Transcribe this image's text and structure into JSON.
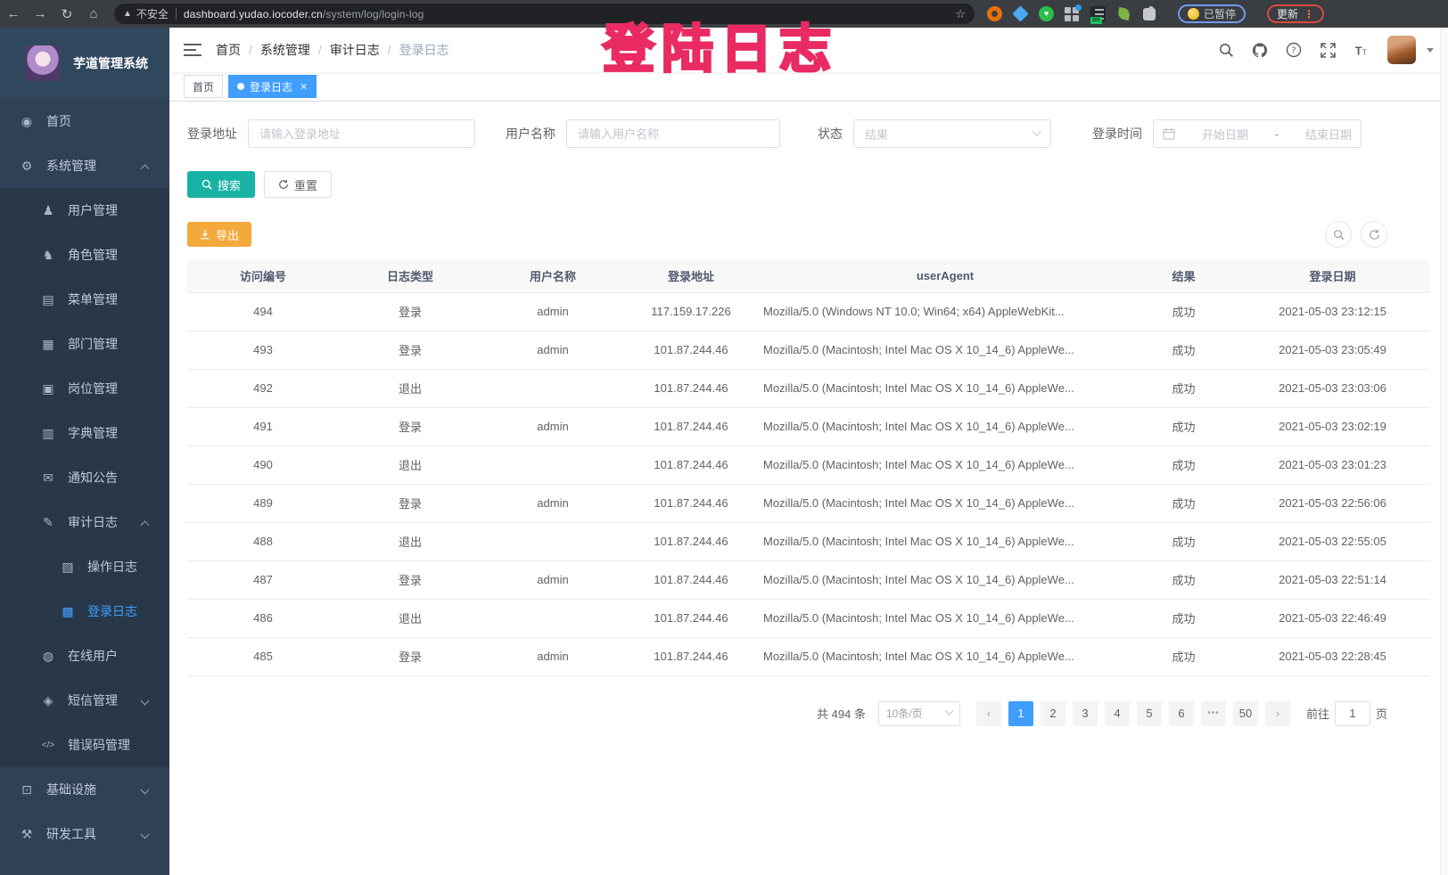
{
  "browser": {
    "security_label": "不安全",
    "url_host": "dashboard.yudao.iocoder.cn",
    "url_path": "/system/log/login-log",
    "paused_label": "已暂停",
    "update_label": "更新"
  },
  "annotation": {
    "text": "登陆日志",
    "color": "#ea2a62"
  },
  "colors": {
    "primary": "#409eff",
    "search_button": "#18b3a4",
    "export_button": "#f4a93d",
    "sidebar_bg": "#2f4156",
    "sidebar_submenu_bg": "#283849",
    "sidebar_text": "#bfcbd9"
  },
  "sidebar": {
    "title": "芋道管理系统",
    "items": [
      {
        "label": "首页",
        "icon": "dashboard-icon",
        "depth": 0
      },
      {
        "label": "系统管理",
        "icon": "gear-icon",
        "depth": 0,
        "chevron": "up"
      },
      {
        "label": "用户管理",
        "icon": "user-icon",
        "depth": 1
      },
      {
        "label": "角色管理",
        "icon": "role-icon",
        "depth": 1
      },
      {
        "label": "菜单管理",
        "icon": "menu-list-icon",
        "depth": 1
      },
      {
        "label": "部门管理",
        "icon": "org-tree-icon",
        "depth": 1
      },
      {
        "label": "岗位管理",
        "icon": "post-icon",
        "depth": 1
      },
      {
        "label": "字典管理",
        "icon": "dict-icon",
        "depth": 1
      },
      {
        "label": "通知公告",
        "icon": "notice-icon",
        "depth": 1
      },
      {
        "label": "审计日志",
        "icon": "audit-icon",
        "depth": 1,
        "chevron": "up"
      },
      {
        "label": "操作日志",
        "icon": "operate-log-icon",
        "depth": 2
      },
      {
        "label": "登录日志",
        "icon": "login-log-icon",
        "depth": 2,
        "active": true
      },
      {
        "label": "在线用户",
        "icon": "online-user-icon",
        "depth": 1
      },
      {
        "label": "短信管理",
        "icon": "sms-icon",
        "depth": 1,
        "chevron": "down"
      },
      {
        "label": "错误码管理",
        "icon": "error-code-icon",
        "depth": 1
      },
      {
        "label": "基础设施",
        "icon": "infra-icon",
        "depth": 0,
        "chevron": "down"
      },
      {
        "label": "研发工具",
        "icon": "dev-tools-icon",
        "depth": 0,
        "chevron": "down"
      }
    ]
  },
  "breadcrumb": {
    "items": [
      "首页",
      "系统管理",
      "审计日志",
      "登录日志"
    ]
  },
  "tabs": {
    "home_label": "首页",
    "active_label": "登录日志"
  },
  "filters": {
    "address_label": "登录地址",
    "address_placeholder": "请输入登录地址",
    "username_label": "用户名称",
    "username_placeholder": "请输入用户名称",
    "status_label": "状态",
    "status_placeholder": "结果",
    "time_label": "登录时间",
    "start_placeholder": "开始日期",
    "range_separator": "-",
    "end_placeholder": "结束日期",
    "search_label": "搜索",
    "reset_label": "重置"
  },
  "toolbar": {
    "export_label": "导出"
  },
  "table": {
    "columns": [
      "访问编号",
      "日志类型",
      "用户名称",
      "登录地址",
      "userAgent",
      "结果",
      "登录日期"
    ],
    "rows": [
      [
        "494",
        "登录",
        "admin",
        "117.159.17.226",
        "Mozilla/5.0 (Windows NT 10.0; Win64; x64) AppleWebKit...",
        "成功",
        "2021-05-03 23:12:15"
      ],
      [
        "493",
        "登录",
        "admin",
        "101.87.244.46",
        "Mozilla/5.0 (Macintosh; Intel Mac OS X 10_14_6) AppleWe...",
        "成功",
        "2021-05-03 23:05:49"
      ],
      [
        "492",
        "退出",
        "",
        "101.87.244.46",
        "Mozilla/5.0 (Macintosh; Intel Mac OS X 10_14_6) AppleWe...",
        "成功",
        "2021-05-03 23:03:06"
      ],
      [
        "491",
        "登录",
        "admin",
        "101.87.244.46",
        "Mozilla/5.0 (Macintosh; Intel Mac OS X 10_14_6) AppleWe...",
        "成功",
        "2021-05-03 23:02:19"
      ],
      [
        "490",
        "退出",
        "",
        "101.87.244.46",
        "Mozilla/5.0 (Macintosh; Intel Mac OS X 10_14_6) AppleWe...",
        "成功",
        "2021-05-03 23:01:23"
      ],
      [
        "489",
        "登录",
        "admin",
        "101.87.244.46",
        "Mozilla/5.0 (Macintosh; Intel Mac OS X 10_14_6) AppleWe...",
        "成功",
        "2021-05-03 22:56:06"
      ],
      [
        "488",
        "退出",
        "",
        "101.87.244.46",
        "Mozilla/5.0 (Macintosh; Intel Mac OS X 10_14_6) AppleWe...",
        "成功",
        "2021-05-03 22:55:05"
      ],
      [
        "487",
        "登录",
        "admin",
        "101.87.244.46",
        "Mozilla/5.0 (Macintosh; Intel Mac OS X 10_14_6) AppleWe...",
        "成功",
        "2021-05-03 22:51:14"
      ],
      [
        "486",
        "退出",
        "",
        "101.87.244.46",
        "Mozilla/5.0 (Macintosh; Intel Mac OS X 10_14_6) AppleWe...",
        "成功",
        "2021-05-03 22:46:49"
      ],
      [
        "485",
        "登录",
        "admin",
        "101.87.244.46",
        "Mozilla/5.0 (Macintosh; Intel Mac OS X 10_14_6) AppleWe...",
        "成功",
        "2021-05-03 22:28:45"
      ]
    ]
  },
  "pagination": {
    "total_label": "共 494 条",
    "page_size_label": "10条/页",
    "pages": [
      "1",
      "2",
      "3",
      "4",
      "5",
      "6",
      "•••",
      "50"
    ],
    "active_page": "1",
    "goto_label": "前往",
    "goto_value": "1",
    "unit_label": "页"
  }
}
